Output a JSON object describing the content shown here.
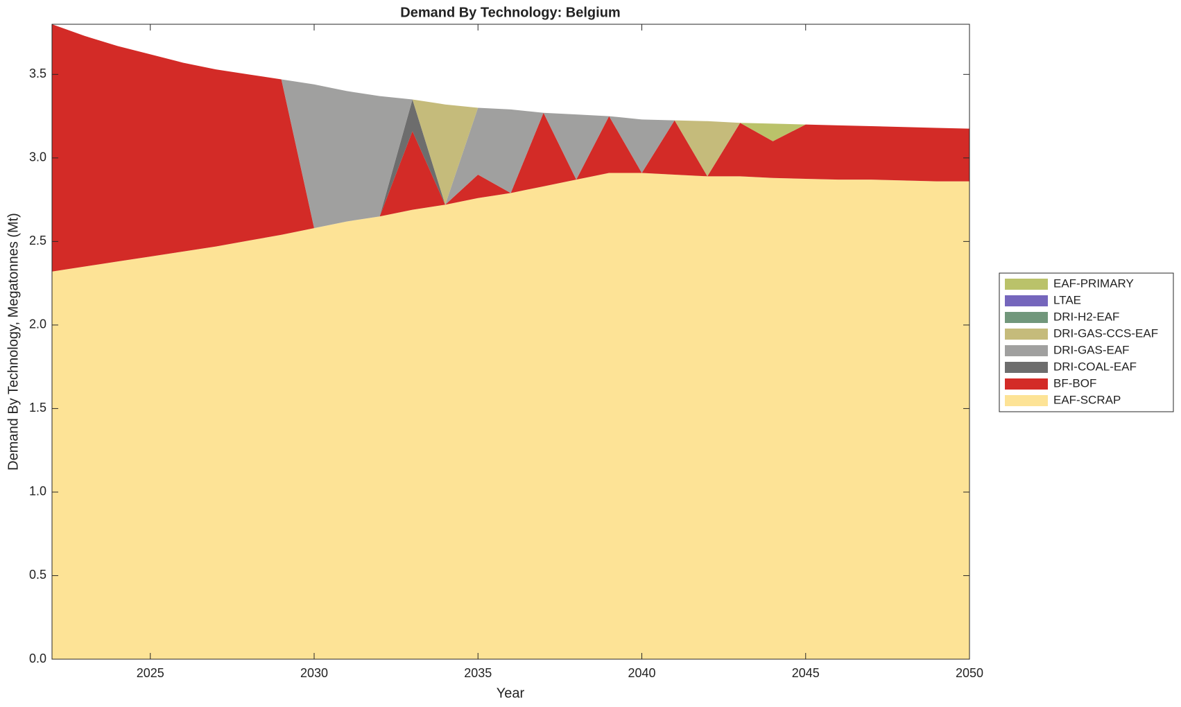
{
  "chart_data": {
    "type": "stacked-area",
    "title": "Demand By Technology: Belgium",
    "x_label": "Year",
    "y_label": "Demand By Technology, Megatonnes (Mt)",
    "x": [
      2022,
      2023,
      2024,
      2025,
      2026,
      2027,
      2028,
      2029,
      2030,
      2031,
      2032,
      2033,
      2034,
      2035,
      2036,
      2037,
      2038,
      2039,
      2040,
      2041,
      2042,
      2043,
      2044,
      2045,
      2046,
      2047,
      2048,
      2049,
      2050
    ],
    "xlim": [
      2022,
      2050
    ],
    "xticks": [
      2025,
      2030,
      2035,
      2040,
      2045,
      2050
    ],
    "ylim": [
      0,
      3.8
    ],
    "yticks": [
      {
        "value": 0,
        "label": "0.0"
      },
      0.5,
      {
        "value": 1,
        "label": "1.0"
      },
      1.5,
      {
        "value": 2,
        "label": "2.0"
      },
      2.5,
      {
        "value": 3,
        "label": "3.0"
      },
      3.5
    ],
    "legend": "outside-right",
    "series": [
      {
        "name": "EAF-SCRAP",
        "color": "#fde396",
        "values": [
          2.32,
          2.35,
          2.38,
          2.41,
          2.44,
          2.47,
          2.505,
          2.54,
          2.58,
          2.62,
          2.65,
          2.69,
          2.72,
          2.76,
          2.79,
          2.83,
          2.87,
          2.91,
          2.91,
          2.9,
          2.89,
          2.89,
          2.88,
          2.875,
          2.87,
          2.87,
          2.865,
          2.86,
          2.86
        ]
      },
      {
        "name": "BF-BOF",
        "color": "#d32b27",
        "values": [
          1.48,
          1.38,
          1.29,
          1.21,
          1.13,
          1.06,
          0.995,
          0.93,
          0,
          0,
          0,
          0.47,
          0,
          0.14,
          0,
          0.44,
          0,
          0.34,
          0,
          0.325,
          0,
          0.32,
          0.22,
          0.325,
          0.325,
          0.32,
          0.32,
          0.32,
          0.315
        ]
      },
      {
        "name": "DRI-COAL-EAF",
        "color": "#6d6d6d",
        "values": [
          0,
          0,
          0,
          0,
          0,
          0,
          0,
          0,
          0,
          0,
          0,
          0.19,
          0,
          0,
          0,
          0,
          0,
          0,
          0,
          0,
          0,
          0,
          0,
          0,
          0,
          0,
          0,
          0,
          0
        ]
      },
      {
        "name": "DRI-GAS-EAF",
        "color": "#a0a09f",
        "values": [
          0,
          0,
          0,
          0,
          0,
          0,
          0,
          0,
          0.86,
          0.78,
          0.72,
          0,
          0,
          0.4,
          0.5,
          0,
          0.39,
          0,
          0.32,
          0,
          0,
          0,
          0,
          0,
          0,
          0,
          0,
          0,
          0
        ]
      },
      {
        "name": "DRI-GAS-CCS-EAF",
        "color": "#c5bb7b",
        "values": [
          0,
          0,
          0,
          0,
          0,
          0,
          0,
          0,
          0,
          0,
          0,
          0,
          0.6,
          0,
          0,
          0,
          0,
          0,
          0,
          0,
          0.33,
          0,
          0,
          0,
          0,
          0,
          0,
          0,
          0
        ]
      },
      {
        "name": "DRI-H2-EAF",
        "color": "#71977b",
        "values": [
          0,
          0,
          0,
          0,
          0,
          0,
          0,
          0,
          0,
          0,
          0,
          0,
          0,
          0,
          0,
          0,
          0,
          0,
          0,
          0,
          0,
          0,
          0,
          0,
          0,
          0,
          0,
          0,
          0
        ]
      },
      {
        "name": "LTAE",
        "color": "#7566bc",
        "values": [
          0,
          0,
          0,
          0,
          0,
          0,
          0,
          0,
          0,
          0,
          0,
          0,
          0,
          0,
          0,
          0,
          0,
          0,
          0,
          0,
          0,
          0,
          0,
          0,
          0,
          0,
          0,
          0,
          0
        ]
      },
      {
        "name": "EAF-PRIMARY",
        "color": "#bac26a",
        "values": [
          0,
          0,
          0,
          0,
          0,
          0,
          0,
          0,
          0,
          0,
          0,
          0,
          0,
          0,
          0,
          0,
          0,
          0,
          0,
          0,
          0,
          0,
          0.105,
          0,
          0,
          0,
          0,
          0,
          0
        ]
      }
    ]
  }
}
